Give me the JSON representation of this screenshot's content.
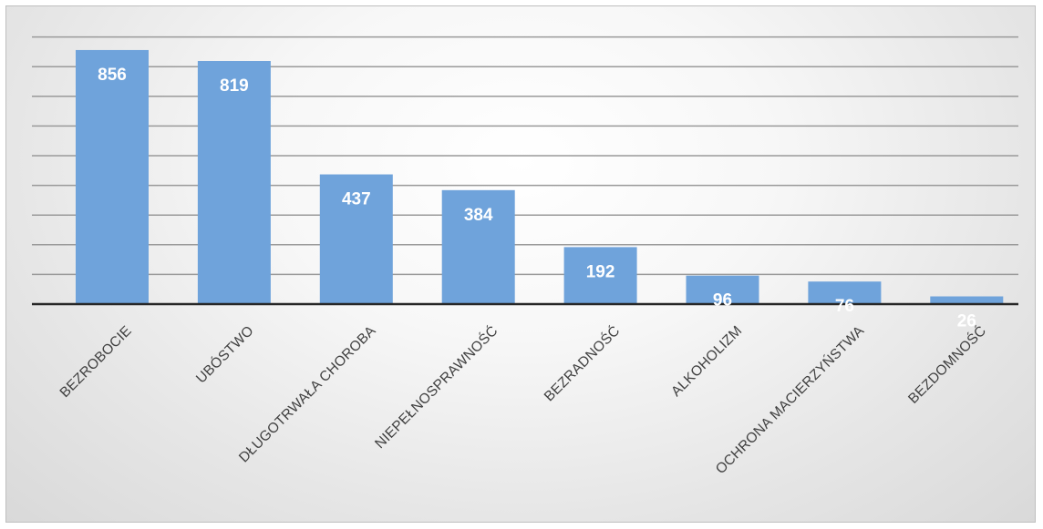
{
  "chart_data": {
    "type": "bar",
    "title": "",
    "xlabel": "",
    "ylabel": "",
    "categories": [
      "BEZROBOCIE",
      "UBÓSTWO",
      "DŁUGOTRWAŁA CHOROBA",
      "NIEPEŁNOSPRAWNOŚĆ",
      "BEZRADNOŚĆ",
      "ALKOHOLIZM",
      "OCHRONA MACIERZYŃSTWA",
      "BEZDOMNOŚĆ"
    ],
    "values": [
      856,
      819,
      437,
      384,
      192,
      96,
      76,
      26
    ],
    "ylim": [
      0,
      900
    ],
    "grid": true,
    "gridlines_at": [
      100,
      200,
      300,
      400,
      500,
      600,
      700,
      800,
      900
    ],
    "legend": "none",
    "colors": {
      "bar": "#6fa3db",
      "data_label": "#ffffff",
      "tick_label": "#404040",
      "gridline": "#9a9a9a",
      "axis": "#262626"
    }
  }
}
